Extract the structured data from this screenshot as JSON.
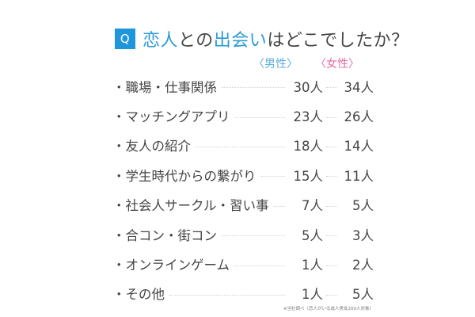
{
  "title": {
    "q_label": "Q",
    "segments": [
      {
        "text": "恋人",
        "highlight": true
      },
      {
        "text": "との",
        "highlight": false
      },
      {
        "text": "出会い",
        "highlight": true
      },
      {
        "text": "はどこでしたか？",
        "highlight": false
      }
    ]
  },
  "headers": {
    "male": "〈男性〉",
    "female": "〈女性〉"
  },
  "colors": {
    "q_box": "#1e96dc",
    "highlight": "#2a9ad6",
    "male_header": "#5aaedb",
    "female_header": "#e46aa4",
    "text": "#444444"
  },
  "rows": [
    {
      "label": "・職場・仕事関係",
      "male": "30人",
      "female": "34人"
    },
    {
      "label": "・マッチングアプリ",
      "male": "23人",
      "female": "26人"
    },
    {
      "label": "・友人の紹介",
      "male": "18人",
      "female": "14人"
    },
    {
      "label": "・学生時代からの繋がり",
      "male": "15人",
      "female": "11人"
    },
    {
      "label": "・社会人サークル・習い事",
      "male": "7人",
      "female": "5人"
    },
    {
      "label": "・合コン・街コン",
      "male": "5人",
      "female": "3人"
    },
    {
      "label": "・オンラインゲーム",
      "male": "1人",
      "female": "2人"
    },
    {
      "label": "・その他",
      "male": "1人",
      "female": "5人"
    }
  ],
  "footnote": "※当社調べ（恋人がいる成人男女200人対象）",
  "chart_data": {
    "type": "table",
    "title": "恋人との出会いはどこでしたか？",
    "categories": [
      "職場・仕事関係",
      "マッチングアプリ",
      "友人の紹介",
      "学生時代からの繋がり",
      "社会人サークル・習い事",
      "合コン・街コン",
      "オンラインゲーム",
      "その他"
    ],
    "series": [
      {
        "name": "男性",
        "values": [
          30,
          23,
          18,
          15,
          7,
          5,
          1,
          1
        ]
      },
      {
        "name": "女性",
        "values": [
          34,
          26,
          14,
          11,
          5,
          3,
          2,
          5
        ]
      }
    ],
    "unit": "人",
    "note": "※当社調べ（恋人がいる成人男女200人対象）"
  }
}
